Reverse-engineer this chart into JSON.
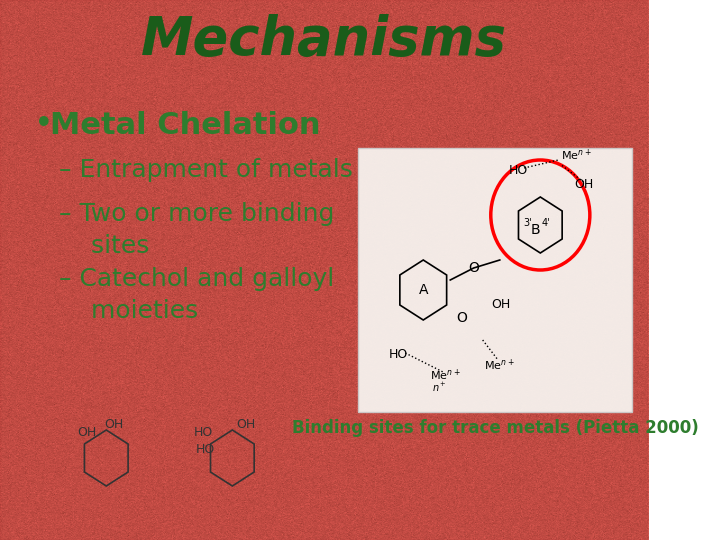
{
  "title": "Mechanisms",
  "title_color": "#1a5c1a",
  "title_fontsize": 38,
  "title_fontstyle": "italic",
  "title_fontweight": "bold",
  "bullet_color": "#2e7d2e",
  "bullet_main": "Metal Chelation",
  "bullet_main_fontsize": 22,
  "sub_bullets": [
    "– Entrapment of metals",
    "– Two or more binding\n    sites",
    "– Catechol and galloyl\n    moieties"
  ],
  "sub_bullet_fontsize": 18,
  "caption": "Binding sites for trace metals (Pietta 2000)",
  "caption_color": "#2e7d2e",
  "caption_fontsize": 12,
  "bg_color": "#c8544a",
  "panel_bg": "#f5f5f0",
  "panel_alpha": 0.85
}
